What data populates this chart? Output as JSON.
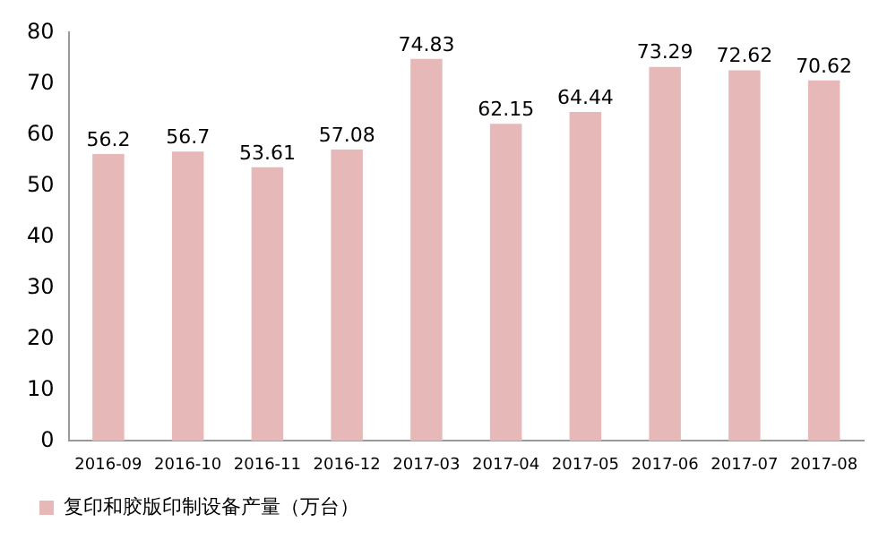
{
  "chart_data": {
    "type": "bar",
    "categories": [
      "2016-09",
      "2016-10",
      "2016-11",
      "2016-12",
      "2017-03",
      "2017-04",
      "2017-05",
      "2017-06",
      "2017-07",
      "2017-08"
    ],
    "series": [
      {
        "name": "复印和胶版印制设备产量（万台）",
        "color": "#e6b8b7",
        "values": [
          56.2,
          56.7,
          53.61,
          57.08,
          74.83,
          62.15,
          64.44,
          73.29,
          72.62,
          70.62
        ]
      }
    ],
    "ylim": [
      0,
      80
    ],
    "yticks": [
      0,
      10,
      20,
      30,
      40,
      50,
      60,
      70,
      80
    ],
    "grid": false,
    "legend": "bottom left",
    "data_labels": true
  }
}
